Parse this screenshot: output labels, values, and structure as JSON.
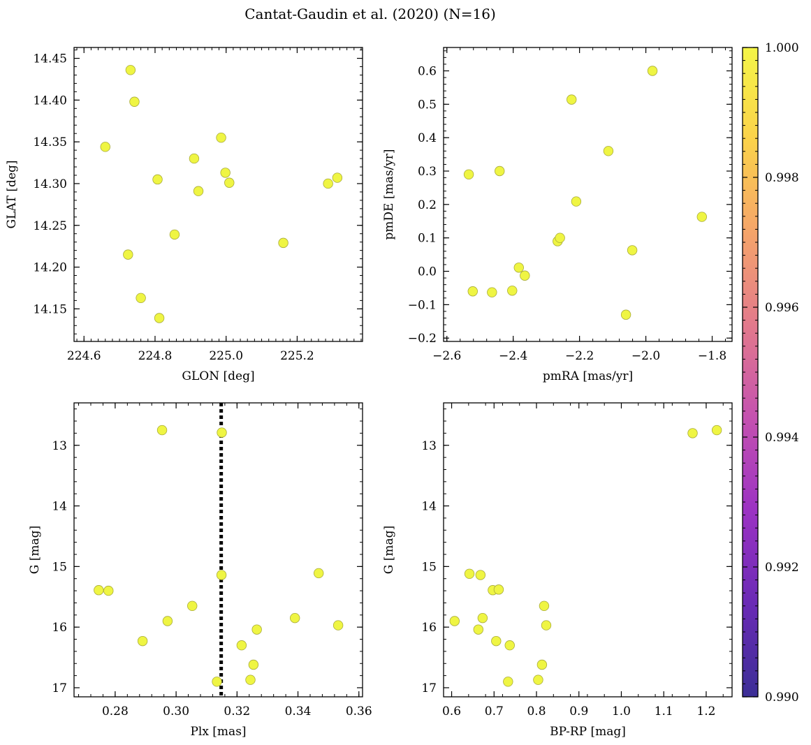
{
  "title": "Cantat-Gaudin et al. (2020) (N=16)",
  "marker_color": "#eff543",
  "marker_edge": "#a8ab3a",
  "colorbar": {
    "min": 0.99,
    "max": 1.0,
    "ticks": [
      "0.990",
      "0.992",
      "0.994",
      "0.996",
      "0.998",
      "1.000"
    ],
    "tick_values": [
      0.99,
      0.992,
      0.994,
      0.996,
      0.998,
      1.0
    ],
    "stops": [
      "#3c2f96",
      "#6a2ab5",
      "#9b32c3",
      "#c451b0",
      "#e2798c",
      "#f5a46a",
      "#fbd24a",
      "#f4f547"
    ]
  },
  "chart_data": [
    {
      "id": "glon-glat",
      "type": "scatter",
      "title": "",
      "xlabel": "GLON [deg]",
      "ylabel": "GLAT [deg]",
      "xlim": [
        224.572,
        225.384
      ],
      "ylim": [
        14.111,
        14.463
      ],
      "xticks": [
        224.6,
        224.8,
        225.0,
        225.2
      ],
      "xtick_labels": [
        "224.6",
        "224.8",
        "225.0",
        "225.2"
      ],
      "yticks": [
        14.15,
        14.2,
        14.25,
        14.3,
        14.35,
        14.4,
        14.45
      ],
      "ytick_labels": [
        "14.15",
        "14.20",
        "14.25",
        "14.30",
        "14.35",
        "14.40",
        "14.45"
      ],
      "x": [
        224.66,
        224.731,
        224.742,
        224.724,
        224.76,
        224.807,
        224.812,
        224.855,
        224.91,
        224.922,
        224.986,
        224.998,
        225.009,
        225.161,
        225.287,
        225.313
      ],
      "y": [
        14.344,
        14.436,
        14.398,
        14.215,
        14.163,
        14.305,
        14.139,
        14.239,
        14.33,
        14.291,
        14.355,
        14.313,
        14.301,
        14.229,
        14.3,
        14.307
      ]
    },
    {
      "id": "pmra-pmde",
      "type": "scatter",
      "title": "",
      "xlabel": "pmRA [mas/yr]",
      "ylabel": "pmDE [mas/yr]",
      "xlim": [
        -2.61,
        -1.74
      ],
      "ylim": [
        -0.21,
        0.67
      ],
      "xticks": [
        -2.6,
        -2.4,
        -2.2,
        -2.0,
        -1.8
      ],
      "xtick_labels": [
        "−2.6",
        "−2.4",
        "−2.2",
        "−2.0",
        "−1.8"
      ],
      "yticks": [
        -0.2,
        -0.1,
        0.0,
        0.1,
        0.2,
        0.3,
        0.4,
        0.5,
        0.6
      ],
      "ytick_labels": [
        "−0.2",
        "−0.1",
        "0.0",
        "0.1",
        "0.2",
        "0.3",
        "0.4",
        "0.5",
        "0.6"
      ],
      "x": [
        -2.534,
        -2.522,
        -2.464,
        -2.441,
        -2.403,
        -2.383,
        -2.365,
        -2.266,
        -2.259,
        -2.224,
        -2.21,
        -2.113,
        -2.06,
        -2.041,
        -1.98,
        -1.831
      ],
      "y": [
        0.29,
        -0.06,
        -0.063,
        0.3,
        -0.058,
        0.011,
        -0.013,
        0.09,
        0.1,
        0.514,
        0.209,
        0.36,
        -0.13,
        0.063,
        0.6,
        0.163
      ]
    },
    {
      "id": "plx-g",
      "type": "scatter",
      "title": "",
      "xlabel": "Plx [mas]",
      "ylabel": "G [mag]",
      "xlim": [
        0.2665,
        0.3612
      ],
      "ylim": [
        17.15,
        12.3
      ],
      "y_inverted": true,
      "xticks": [
        0.28,
        0.3,
        0.32,
        0.34,
        0.36
      ],
      "xtick_labels": [
        "0.28",
        "0.30",
        "0.32",
        "0.34",
        "0.36"
      ],
      "yticks": [
        13,
        14,
        15,
        16,
        17
      ],
      "ytick_labels": [
        "13",
        "14",
        "15",
        "16",
        "17"
      ],
      "vline": 0.3148,
      "x": [
        0.2954,
        0.315,
        0.3149,
        0.3468,
        0.2746,
        0.2778,
        0.3053,
        0.2972,
        0.339,
        0.3265,
        0.3532,
        0.289,
        0.3215,
        0.3254,
        0.3244,
        0.3134
      ],
      "y": [
        12.75,
        12.79,
        15.14,
        15.11,
        15.39,
        15.4,
        15.65,
        15.9,
        15.85,
        16.04,
        15.97,
        16.23,
        16.3,
        16.62,
        16.87,
        16.9
      ]
    },
    {
      "id": "bprp-g",
      "type": "scatter",
      "title": "",
      "xlabel": "BP-RP [mag]",
      "ylabel": "G [mag]",
      "xlim": [
        0.581,
        1.261
      ],
      "ylim": [
        17.15,
        12.3
      ],
      "y_inverted": true,
      "xticks": [
        0.6,
        0.7,
        0.8,
        0.9,
        1.0,
        1.1,
        1.2
      ],
      "xtick_labels": [
        "0.6",
        "0.7",
        "0.8",
        "0.9",
        "1.0",
        "1.1",
        "1.2"
      ],
      "yticks": [
        13,
        14,
        15,
        16,
        17
      ],
      "ytick_labels": [
        "13",
        "14",
        "15",
        "16",
        "17"
      ],
      "x": [
        1.168,
        1.225,
        0.642,
        0.668,
        0.697,
        0.711,
        0.818,
        0.607,
        0.673,
        0.823,
        0.663,
        0.705,
        0.737,
        0.813,
        0.804,
        0.733
      ],
      "y": [
        12.8,
        12.75,
        15.12,
        15.14,
        15.39,
        15.38,
        15.65,
        15.9,
        15.85,
        15.97,
        16.04,
        16.23,
        16.3,
        16.62,
        16.87,
        16.9
      ]
    }
  ]
}
